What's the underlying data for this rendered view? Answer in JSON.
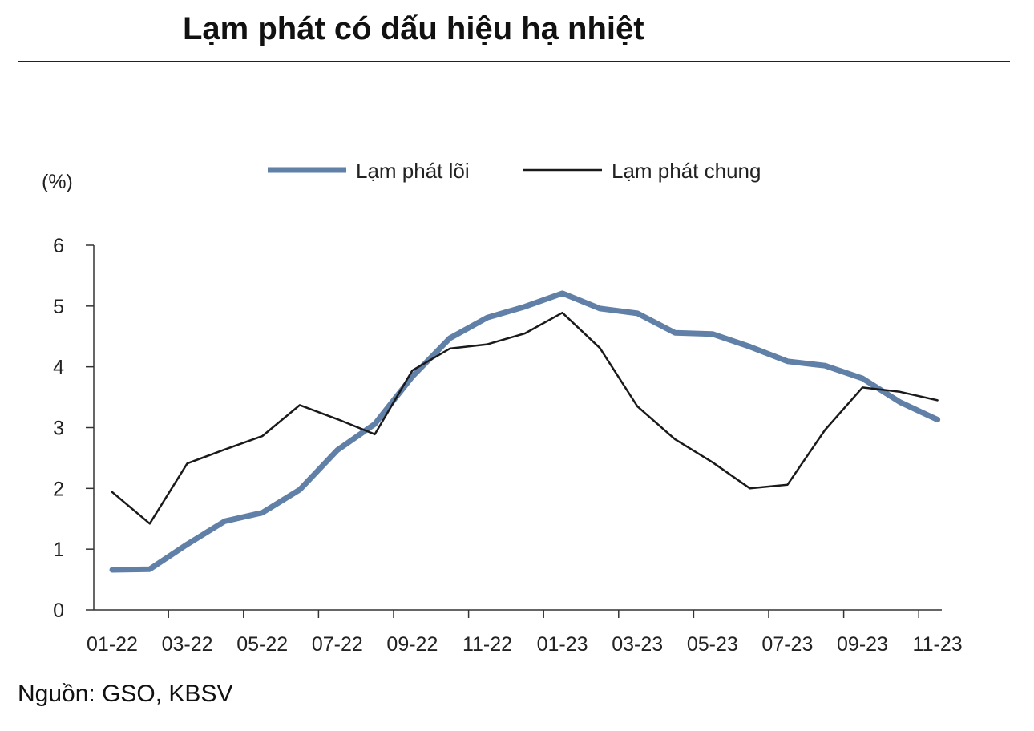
{
  "title": "Lạm phát có dấu hiệu hạ nhiệt",
  "source": "Nguồn: GSO, KBSV",
  "chart_data": {
    "type": "line",
    "ylabel": "(%)",
    "ylim": [
      0,
      6
    ],
    "yticks": [
      0,
      1,
      2,
      3,
      4,
      5,
      6
    ],
    "x_tick_labels": [
      "01-22",
      "03-22",
      "05-22",
      "07-22",
      "09-22",
      "11-22",
      "01-23",
      "03-23",
      "05-23",
      "07-23",
      "09-23",
      "11-23"
    ],
    "categories": [
      "01-22",
      "02-22",
      "03-22",
      "04-22",
      "05-22",
      "06-22",
      "07-22",
      "08-22",
      "09-22",
      "10-22",
      "11-22",
      "12-22",
      "01-23",
      "02-23",
      "03-23",
      "04-23",
      "05-23",
      "06-23",
      "07-23",
      "08-23",
      "09-23",
      "10-23",
      "11-23"
    ],
    "legend_position": "top-center",
    "grid": false,
    "series": [
      {
        "name": "Lạm phát lõi",
        "color": "#6080a8",
        "values": [
          0.66,
          0.67,
          1.08,
          1.46,
          1.6,
          1.98,
          2.63,
          3.06,
          3.84,
          4.47,
          4.81,
          4.99,
          5.21,
          4.96,
          4.88,
          4.56,
          4.54,
          4.33,
          4.09,
          4.02,
          3.81,
          3.42,
          3.13
        ]
      },
      {
        "name": "Lạm phát chung",
        "color": "#1a1a1a",
        "values": [
          1.94,
          1.42,
          2.41,
          2.64,
          2.86,
          3.37,
          3.14,
          2.89,
          3.94,
          4.3,
          4.37,
          4.55,
          4.89,
          4.31,
          3.35,
          2.81,
          2.43,
          2.0,
          2.06,
          2.96,
          3.66,
          3.59,
          3.45
        ]
      }
    ]
  }
}
